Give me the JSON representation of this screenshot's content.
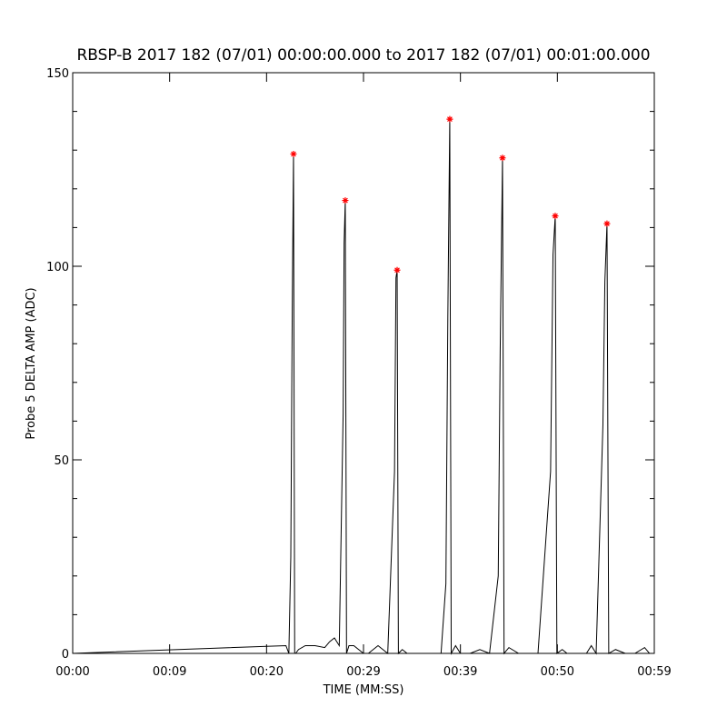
{
  "chart_data": {
    "type": "line",
    "title": "RBSP-B 2017 182 (07/01) 00:00:00.000 to 2017 182 (07/01) 00:01:00.000",
    "x_label": "TIME (MM:SS)",
    "y_label": "Probe 5 DELTA AMP (ADC)",
    "xlim": [
      0,
      60
    ],
    "ylim": [
      0,
      150
    ],
    "xticks": [
      {
        "value": 0,
        "label": "00:00"
      },
      {
        "value": 10,
        "label": "00:09"
      },
      {
        "value": 20,
        "label": "00:20"
      },
      {
        "value": 30,
        "label": "00:29"
      },
      {
        "value": 40,
        "label": "00:39"
      },
      {
        "value": 50,
        "label": "00:50"
      },
      {
        "value": 60,
        "label": "00:59"
      }
    ],
    "yticks": [
      0,
      50,
      100,
      150
    ],
    "y_minor_ticks": [
      10,
      20,
      30,
      40,
      60,
      70,
      80,
      90,
      110,
      120,
      130,
      140
    ],
    "series": [
      {
        "color": "#000000",
        "x": [
          0,
          22,
          22.3,
          22.5,
          22.65,
          22.78,
          22.9,
          23.0,
          23.3,
          24,
          25,
          26,
          26.5,
          27,
          27.5,
          27.9,
          28.0,
          28.12,
          28.25,
          28.5,
          29,
          30,
          30.5,
          31,
          31.5,
          32,
          32.5,
          33.2,
          33.35,
          33.47,
          33.6,
          34,
          34.5,
          35,
          36,
          37,
          38.0,
          38.5,
          38.7,
          38.9,
          39.05,
          39.5,
          40,
          41,
          42,
          43,
          43.9,
          44.1,
          44.34,
          44.5,
          45,
          46,
          48,
          49.3,
          49.55,
          49.78,
          49.95,
          50.5,
          51,
          52,
          53,
          53.5,
          54,
          54.7,
          54.9,
          55.12,
          55.3,
          56,
          57,
          58,
          59,
          59.5,
          60
        ],
        "values": [
          0,
          2,
          0,
          25,
          89,
          129,
          0,
          0,
          1,
          2,
          2,
          1.5,
          3,
          4,
          2,
          62,
          106,
          117,
          0,
          2,
          2,
          0,
          0,
          1,
          2,
          1,
          0,
          47,
          97,
          99,
          0,
          1,
          0,
          0,
          0,
          0,
          0,
          18,
          87,
          138,
          0,
          2,
          0,
          0,
          1,
          0,
          20,
          78,
          128,
          0,
          1.5,
          0,
          0,
          47,
          103,
          113,
          0,
          1,
          0,
          0,
          0,
          2,
          0,
          59,
          96,
          111,
          0,
          1,
          0,
          0,
          1.5,
          0,
          0
        ]
      },
      {
        "color": "#ff0000",
        "marker": "star",
        "x": [
          22.78,
          28.12,
          33.47,
          38.9,
          44.34,
          49.78,
          55.12
        ],
        "values": [
          129,
          117,
          99,
          138,
          128,
          113,
          111
        ]
      }
    ]
  }
}
